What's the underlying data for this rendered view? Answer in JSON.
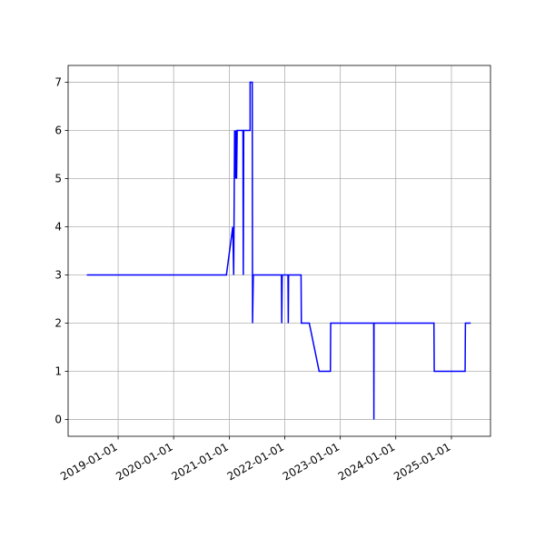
{
  "chart_data": {
    "type": "line",
    "x": [
      "2018-06-09",
      "2020-12-13",
      "2021-01-24",
      "2021-01-30",
      "2021-02-05",
      "2021-02-10",
      "2021-02-14",
      "2021-02-18",
      "2021-02-22",
      "2021-04-01",
      "2021-04-03",
      "2021-04-06",
      "2021-05-18",
      "2021-05-18",
      "2021-06-01",
      "2021-06-03",
      "2021-06-08",
      "2021-12-10",
      "2021-12-12",
      "2021-12-15",
      "2022-01-22",
      "2022-01-24",
      "2022-01-26",
      "2022-04-18",
      "2022-04-20",
      "2022-06-11",
      "2022-08-15",
      "2022-10-28",
      "2022-10-30",
      "2023-08-09",
      "2023-08-10",
      "2023-08-11",
      "2024-09-08",
      "2024-09-10",
      "2025-04-01",
      "2025-04-03",
      "2025-05-08"
    ],
    "series": [
      {
        "color": "#0000ff",
        "values": [
          3,
          3,
          4,
          3,
          6,
          5,
          6,
          5,
          6,
          6,
          3,
          6,
          6,
          7,
          7,
          2,
          3,
          3,
          2,
          3,
          3,
          2,
          3,
          3,
          2,
          2,
          1,
          1,
          2,
          2,
          0,
          2,
          2,
          1,
          1,
          2,
          2
        ]
      }
    ],
    "xlim": [
      "2018-02-06",
      "2025-09-15"
    ],
    "xticks": [
      "2019-01-01",
      "2020-01-01",
      "2021-01-01",
      "2022-01-01",
      "2023-01-01",
      "2024-01-01",
      "2025-01-01"
    ],
    "ylim": [
      -0.35,
      7.35
    ],
    "yticks": [
      0,
      1,
      2,
      3,
      4,
      5,
      6,
      7
    ],
    "grid": true
  }
}
